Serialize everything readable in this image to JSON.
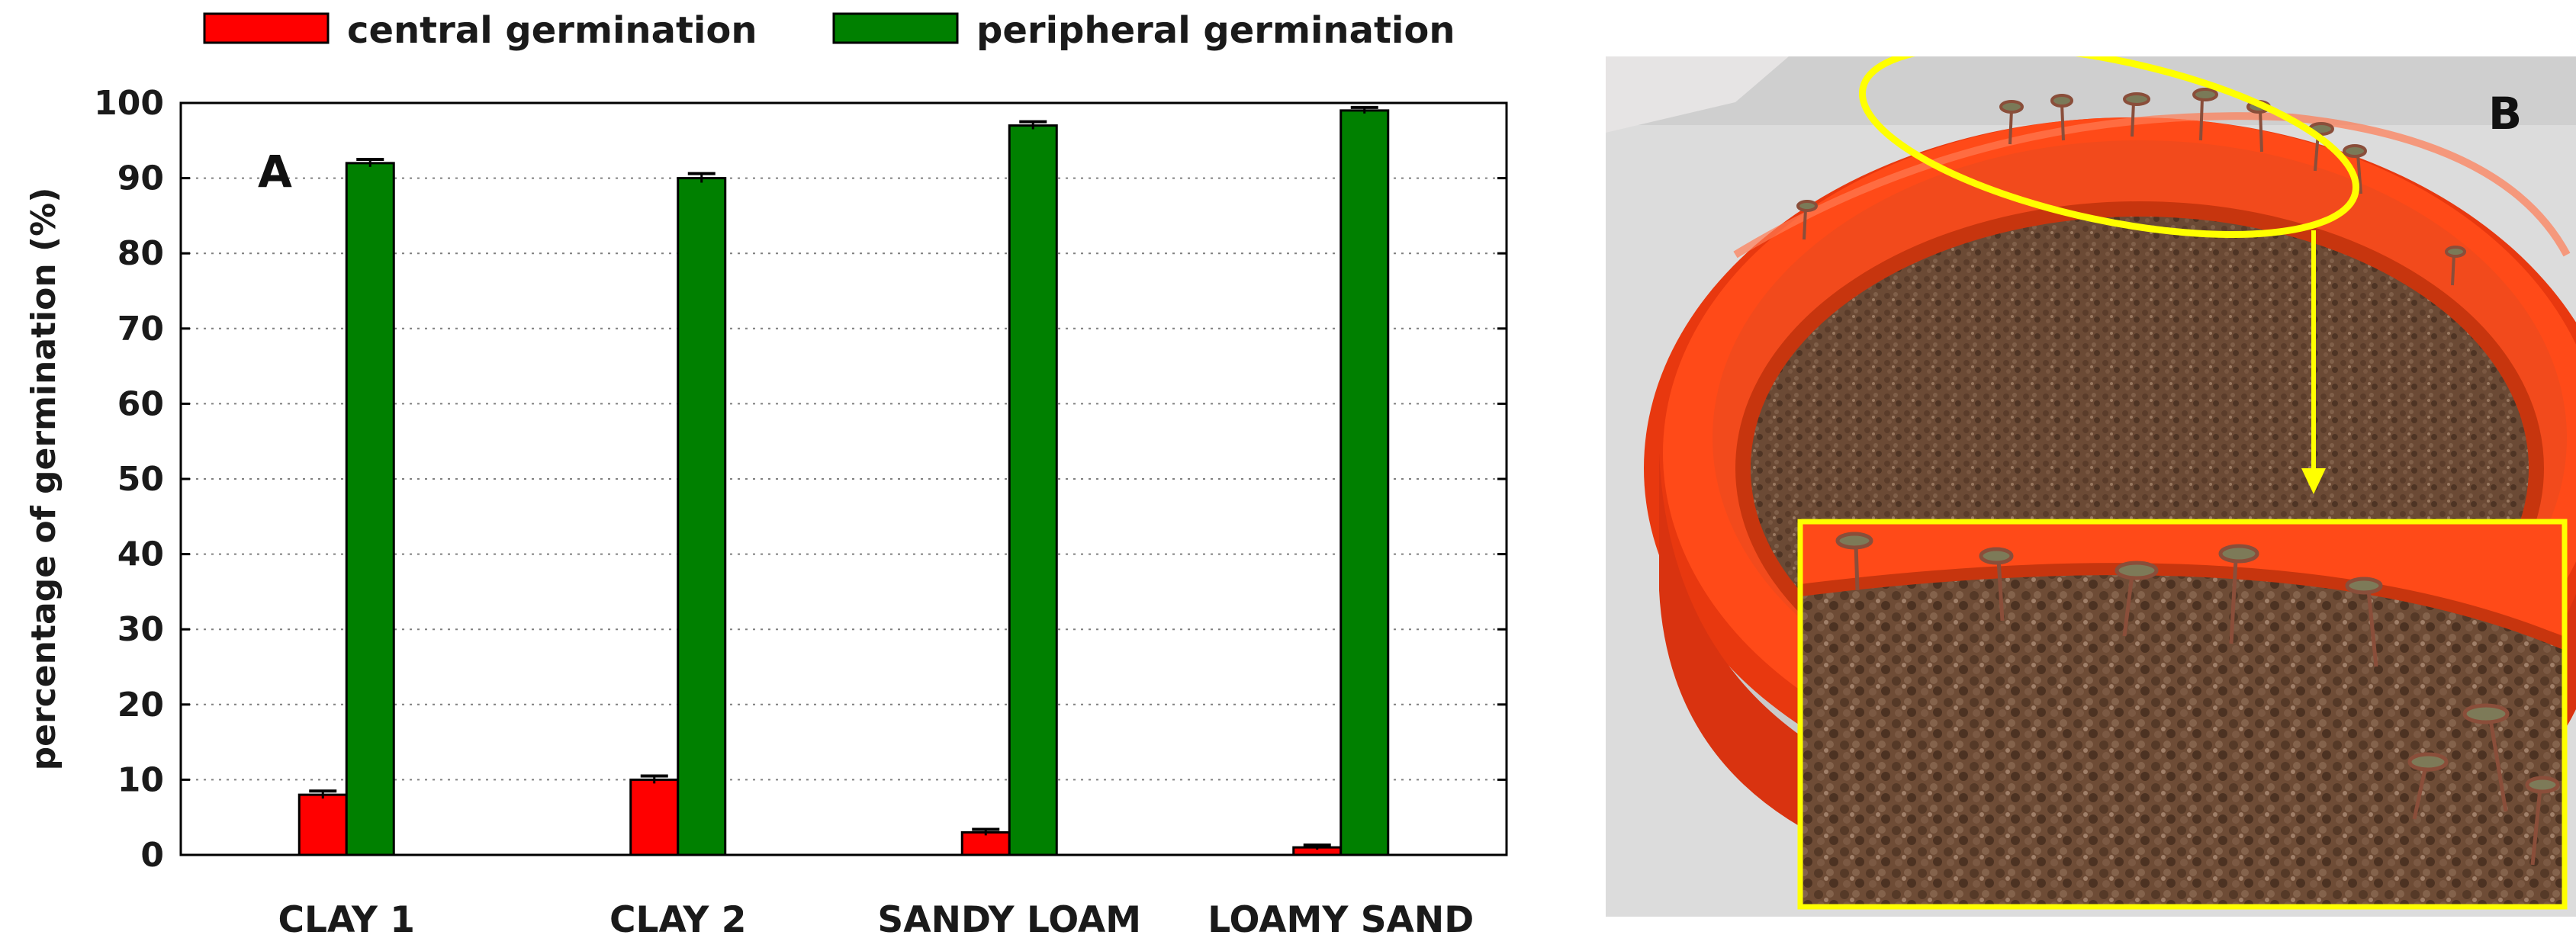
{
  "panels": {
    "a_label": "A",
    "b_label": "B"
  },
  "colors": {
    "central": "#ff0000",
    "peripheral": "#008000",
    "frame": "#000000",
    "grid": "#7f7f7f",
    "highlight": "#ffff00",
    "dish": "#ff3300",
    "soil": "#6b4a35"
  },
  "chart_data": {
    "type": "bar",
    "title": "",
    "xlabel": "",
    "ylabel": "percentage of germination (%)",
    "ylim": [
      0,
      100
    ],
    "yticks": [
      0,
      10,
      20,
      30,
      40,
      50,
      60,
      70,
      80,
      90,
      100
    ],
    "grid": "horizontal-dotted",
    "legend_position": "top",
    "categories": [
      "CLAY 1",
      "CLAY 2",
      "SANDY LOAM",
      "LOAMY SAND"
    ],
    "series": [
      {
        "name": "central germination",
        "color": "#ff0000",
        "values": [
          8,
          10,
          3,
          1
        ],
        "errors": [
          0.5,
          0.5,
          0.4,
          0.3
        ]
      },
      {
        "name": "peripheral germination",
        "color": "#008000",
        "values": [
          92,
          90,
          97,
          99
        ],
        "errors": [
          0.5,
          0.6,
          0.5,
          0.4
        ]
      }
    ]
  },
  "photo": {
    "subject": "red dish with soil and seedlings germinating near the rim; yellow ellipse marks the rim area, arrow points to enlarged inset"
  }
}
